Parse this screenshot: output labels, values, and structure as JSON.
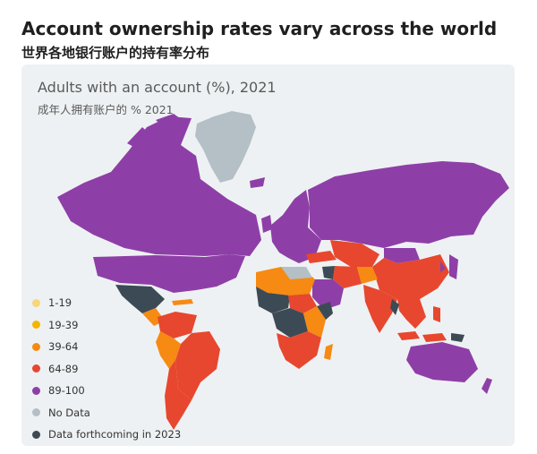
{
  "header": {
    "title": "Account ownership rates vary across the world",
    "subtitle": "世界各地银行账户的持有率分布"
  },
  "map": {
    "title": "Adults with an account (%), 2021",
    "subtitle": "成年人拥有账户的 % 2021",
    "colors": {
      "c1_19": "#f7d57a",
      "c19_39": "#f4b400",
      "c39_64": "#f68a12",
      "c64_89": "#e7472e",
      "c89_100": "#8e3fa7",
      "no_data": "#b4c0c6",
      "forthcoming": "#3c4a55"
    },
    "legend": [
      {
        "label": "1-19",
        "color": "#f7d57a"
      },
      {
        "label": "19-39",
        "color": "#f4b400"
      },
      {
        "label": "39-64",
        "color": "#f68a12"
      },
      {
        "label": "64-89",
        "color": "#e7472e"
      },
      {
        "label": "89-100",
        "color": "#8e3fa7"
      },
      {
        "label": "No Data",
        "color": "#b4c0c6"
      },
      {
        "label": "Data forthcoming in 2023",
        "color": "#3c4a55"
      }
    ]
  }
}
